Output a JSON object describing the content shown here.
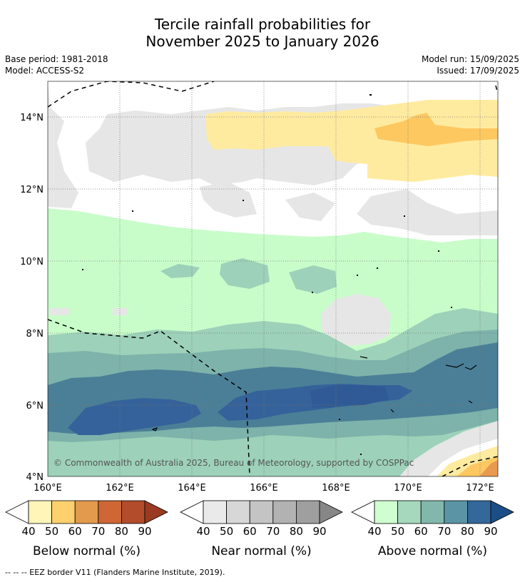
{
  "title_line1": "Tercile rainfall probabilities for",
  "title_line2": "November 2025 to January 2026",
  "base_period": "Base period: 1981-2018",
  "model": "Model: ACCESS-S2",
  "model_run": "Model run: 15/09/2025",
  "issued": "Issued: 17/09/2025",
  "copyright": "© Commonwealth of Australia 2025, Bureau of Meteorology, supported by COSPPac",
  "lat_ticks": [
    "14°N",
    "12°N",
    "10°N",
    "8°N",
    "6°N",
    "4°N"
  ],
  "lon_ticks": [
    "160°E",
    "162°E",
    "164°E",
    "166°E",
    "168°E",
    "170°E",
    "172°E"
  ],
  "colorbars": [
    {
      "title": "Below normal (%)",
      "labels": [
        "40",
        "50",
        "60",
        "70",
        "80",
        "90"
      ],
      "colors": [
        "#fff5b8",
        "#fed16e",
        "#e39a4c",
        "#ce6635",
        "#b24c2b",
        "#9a3a22"
      ]
    },
    {
      "title": "Near normal (%)",
      "labels": [
        "40",
        "50",
        "60",
        "70",
        "80",
        "90"
      ],
      "colors": [
        "#eaeaea",
        "#d7d7d7",
        "#c4c4c4",
        "#b2b2b2",
        "#9f9f9f",
        "#868686"
      ]
    },
    {
      "title": "Above normal (%)",
      "labels": [
        "40",
        "50",
        "60",
        "70",
        "80",
        "90"
      ],
      "colors": [
        "#cfffd0",
        "#a6d8bd",
        "#82b8ac",
        "#5b95a5",
        "#34679a",
        "#1b4e86"
      ]
    }
  ],
  "footnote": "--  --  -- EEZ border V11 (Flanders Marine Institute, 2019).",
  "map_colors": {
    "near40": "#e6e6e6",
    "below40": "#ffeba0",
    "below50": "#fdc860",
    "above40": "#c8fdca",
    "above50": "#9dd1b9",
    "above60": "#7db3ab",
    "above70": "#4b7f97",
    "above80": "#35629a",
    "below60": "#e89a50"
  }
}
